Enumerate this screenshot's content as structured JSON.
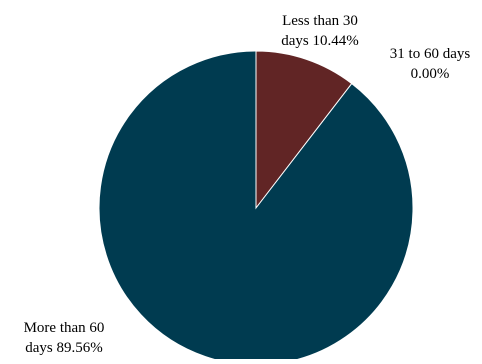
{
  "chart_data": {
    "type": "pie",
    "title": "",
    "start_angle_deg": 0,
    "direction": "clockwise",
    "slices": [
      {
        "label_lines": [
          "Less than 30",
          "days 10.44%"
        ],
        "value": 10.44,
        "color": "#612525"
      },
      {
        "label_lines": [
          "31 to 60 days",
          "0.00%"
        ],
        "value": 0.0,
        "color": "#612525"
      },
      {
        "label_lines": [
          "More than 60",
          "days 89.56%"
        ],
        "value": 89.56,
        "color": "#003b50"
      }
    ],
    "legend": "none"
  }
}
